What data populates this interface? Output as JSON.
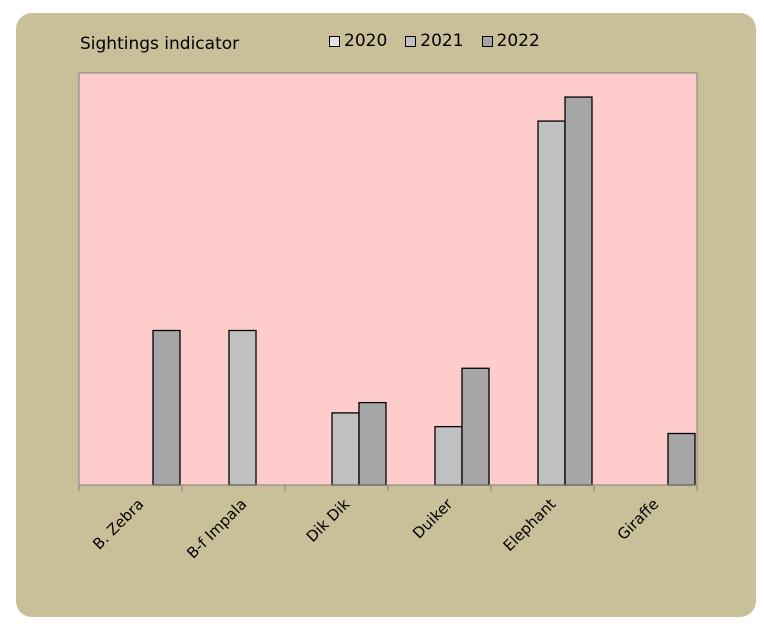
{
  "chart_data": {
    "type": "bar",
    "title": "Sightings indicator",
    "categories": [
      "B. Zebra",
      "B-f Impala",
      "Dik Dik",
      "Duiker",
      "Elephant",
      "Giraffe"
    ],
    "series": [
      {
        "name": "2020",
        "color": "#e3e3e3",
        "values": [
          0,
          0,
          0,
          0,
          0,
          0
        ]
      },
      {
        "name": "2021",
        "color": "#c0c0c0",
        "values": [
          0,
          45,
          21,
          17,
          106,
          0
        ]
      },
      {
        "name": "2022",
        "color": "#a6a6a6",
        "values": [
          45,
          0,
          24,
          34,
          113,
          15
        ]
      }
    ],
    "ylim": [
      0,
      120
    ],
    "grid": false,
    "legend": "top",
    "xlabel": "",
    "ylabel": ""
  },
  "colors": {
    "card_background": "#c9bf98",
    "plot_background": "#ffcccc",
    "bar_stroke": "#000000"
  }
}
